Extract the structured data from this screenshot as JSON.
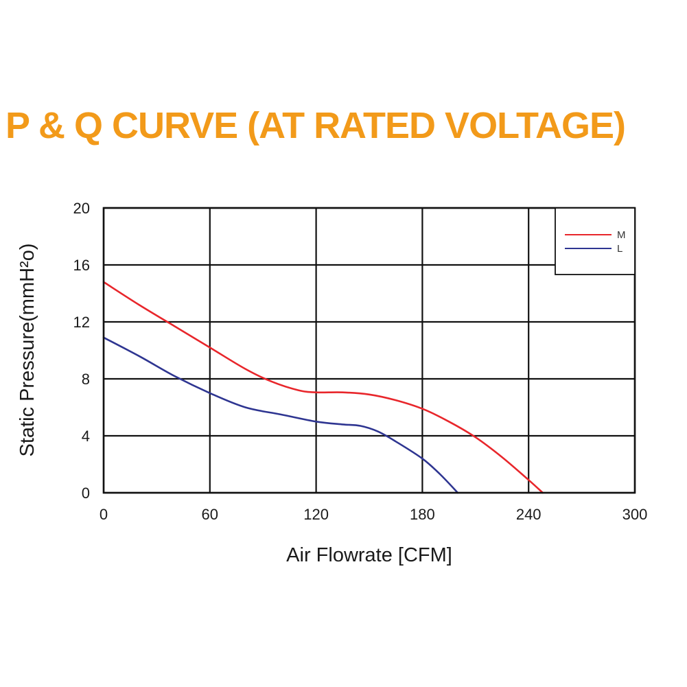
{
  "chart_data": {
    "type": "line",
    "title": "P & Q CURVE (AT RATED VOLTAGE)",
    "title_color": "#f29a1a",
    "xlabel": "Air  Flowrate   [CFM]",
    "ylabel": "Static Pressure(mmH²o)",
    "xlim": [
      0,
      300
    ],
    "ylim": [
      0,
      20
    ],
    "xticks": [
      0,
      60,
      120,
      180,
      240,
      300
    ],
    "yticks": [
      0,
      4,
      8,
      12,
      16,
      20
    ],
    "grid": true,
    "legend_position": "top-right",
    "series": [
      {
        "name": "M",
        "color": "#e8262b",
        "x": [
          0,
          20,
          40,
          60,
          80,
          95,
          110,
          120,
          135,
          150,
          165,
          180,
          195,
          210,
          225,
          240,
          248
        ],
        "y": [
          14.8,
          13.2,
          11.7,
          10.2,
          8.7,
          7.8,
          7.2,
          7.05,
          7.05,
          6.9,
          6.5,
          5.9,
          5.0,
          3.9,
          2.5,
          0.9,
          0
        ]
      },
      {
        "name": "L",
        "color": "#2e3591",
        "x": [
          0,
          20,
          40,
          60,
          80,
          100,
          120,
          135,
          145,
          155,
          165,
          180,
          190,
          200
        ],
        "y": [
          10.9,
          9.6,
          8.2,
          7.0,
          6.0,
          5.5,
          5.0,
          4.8,
          4.7,
          4.3,
          3.6,
          2.4,
          1.3,
          0
        ]
      }
    ]
  }
}
